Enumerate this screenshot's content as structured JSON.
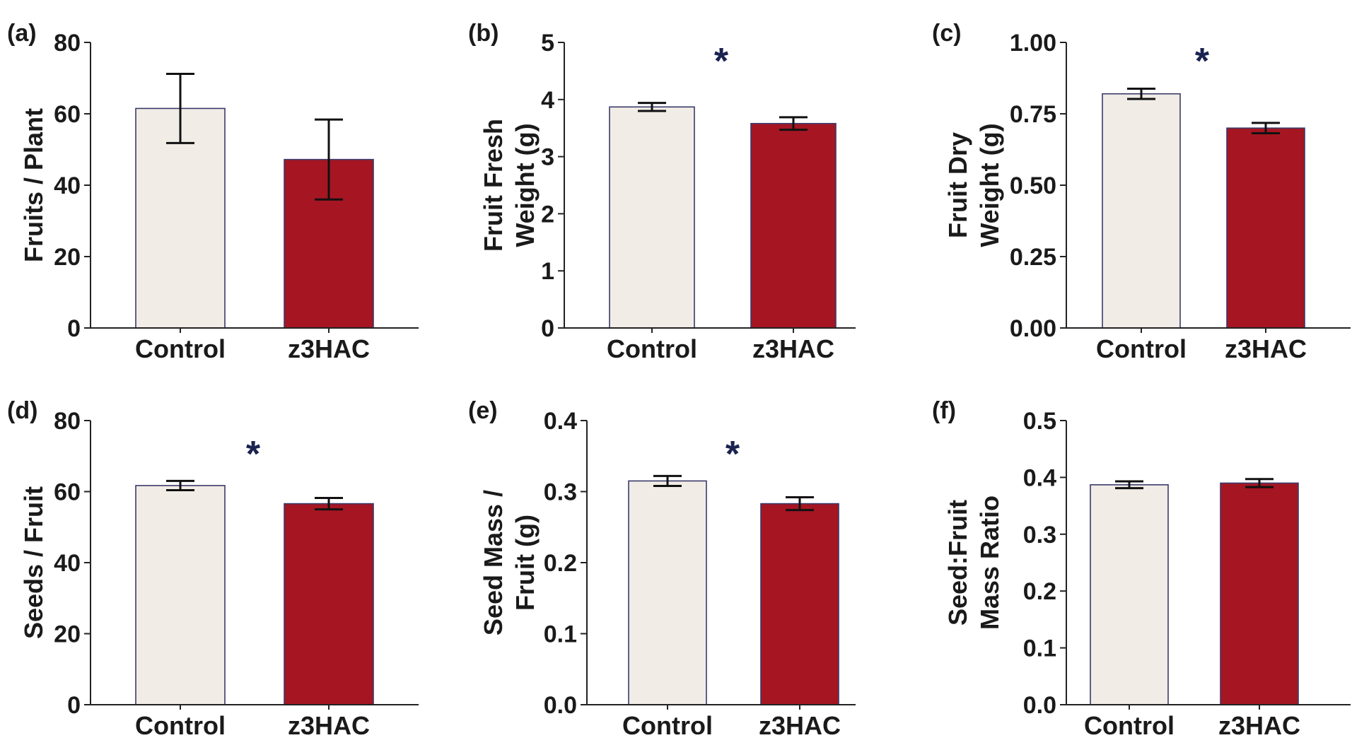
{
  "colors": {
    "control_fill": "#F1ECE6",
    "treatment_fill": "#A51622",
    "bar_edge": "#3A3A6A",
    "axis": "#222222",
    "significance": "#1B2350"
  },
  "chart_data": [
    {
      "type": "bar",
      "panel_label": "(a)",
      "categories": [
        "Control",
        "z3HAC"
      ],
      "values": [
        61.5,
        47.2
      ],
      "errors": [
        9.7,
        11.2
      ],
      "ylabel_lines": [
        "Fruits / Plant"
      ],
      "ylim": [
        0,
        80
      ],
      "yticks": [
        0,
        20,
        40,
        60,
        80
      ],
      "ytick_labels": [
        "0",
        "20",
        "40",
        "60",
        "80"
      ],
      "significance": ""
    },
    {
      "type": "bar",
      "panel_label": "(b)",
      "categories": [
        "Control",
        "z3HAC"
      ],
      "values": [
        3.87,
        3.58
      ],
      "errors": [
        0.07,
        0.11
      ],
      "ylabel_lines": [
        "Fruit Fresh",
        "Weight (g)"
      ],
      "ylim": [
        0,
        5
      ],
      "yticks": [
        0,
        1,
        2,
        3,
        4,
        5
      ],
      "ytick_labels": [
        "0",
        "1",
        "2",
        "3",
        "4",
        "5"
      ],
      "significance": "*"
    },
    {
      "type": "bar",
      "panel_label": "(c)",
      "categories": [
        "Control",
        "z3HAC"
      ],
      "values": [
        0.82,
        0.7
      ],
      "errors": [
        0.018,
        0.018
      ],
      "ylabel_lines": [
        "Fruit Dry",
        "Weight (g)"
      ],
      "ylim": [
        0,
        1.0
      ],
      "yticks": [
        0,
        0.25,
        0.5,
        0.75,
        1.0
      ],
      "ytick_labels": [
        "0.00",
        "0.25",
        "0.50",
        "0.75",
        "1.00"
      ],
      "significance": "*"
    },
    {
      "type": "bar",
      "panel_label": "(d)",
      "categories": [
        "Control",
        "z3HAC"
      ],
      "values": [
        61.7,
        56.6
      ],
      "errors": [
        1.3,
        1.6
      ],
      "ylabel_lines": [
        "Seeds / Fruit"
      ],
      "ylim": [
        0,
        80
      ],
      "yticks": [
        0,
        20,
        40,
        60,
        80
      ],
      "ytick_labels": [
        "0",
        "20",
        "40",
        "60",
        "80"
      ],
      "significance": "*"
    },
    {
      "type": "bar",
      "panel_label": "(e)",
      "categories": [
        "Control",
        "z3HAC"
      ],
      "values": [
        0.315,
        0.283
      ],
      "errors": [
        0.007,
        0.009
      ],
      "ylabel_lines": [
        "Seed Mass /",
        "Fruit (g)"
      ],
      "ylim": [
        0,
        0.4
      ],
      "yticks": [
        0,
        0.1,
        0.2,
        0.3,
        0.4
      ],
      "ytick_labels": [
        "0.0",
        "0.1",
        "0.2",
        "0.3",
        "0.4"
      ],
      "significance": "*"
    },
    {
      "type": "bar",
      "panel_label": "(f)",
      "categories": [
        "Control",
        "z3HAC"
      ],
      "values": [
        0.387,
        0.39
      ],
      "errors": [
        0.006,
        0.007
      ],
      "ylabel_lines": [
        "Seed:Fruit",
        "Mass Ratio"
      ],
      "ylim": [
        0,
        0.5
      ],
      "yticks": [
        0,
        0.1,
        0.2,
        0.3,
        0.4,
        0.5
      ],
      "ytick_labels": [
        "0.0",
        "0.1",
        "0.2",
        "0.3",
        "0.4",
        "0.5"
      ],
      "significance": ""
    }
  ]
}
